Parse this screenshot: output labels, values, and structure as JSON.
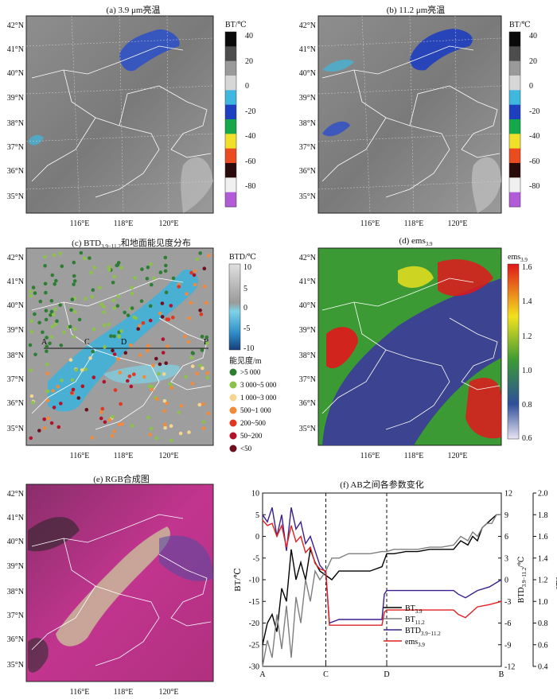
{
  "panels": {
    "a": {
      "title": "(a) 3.9 μm亮温",
      "colorbar_label": "BT/℃",
      "colorbar_ticks": [
        "40",
        "20",
        "0",
        "-20",
        "-40",
        "-60",
        "-80"
      ]
    },
    "b": {
      "title": "(b) 11.2 μm亮温",
      "colorbar_label": "BT/℃",
      "colorbar_ticks": [
        "40",
        "20",
        "0",
        "-20",
        "-40",
        "-60",
        "-80"
      ]
    },
    "c": {
      "title_prefix": "(c) BTD",
      "title_sub": "3.9−11.2",
      "title_suffix": "和地面能见度分布",
      "colorbar_label": "BTD/℃",
      "colorbar_ticks": [
        "10",
        "5",
        "0",
        "-5",
        "-10"
      ],
      "visibility_title": "能见度/m",
      "visibility_legend": [
        {
          "label": ">5 000",
          "color": "#2e7d32"
        },
        {
          "label": "3 000~5 000",
          "color": "#8bc34a"
        },
        {
          "label": "1 000~3 000",
          "color": "#f6d58f"
        },
        {
          "label": "500~1 000",
          "color": "#f28a3c"
        },
        {
          "label": "200~500",
          "color": "#e2361f"
        },
        {
          "label": "50~200",
          "color": "#b3122a"
        },
        {
          "label": "<50",
          "color": "#6d0f1f"
        }
      ],
      "points": {
        "A": "A",
        "C": "C",
        "D": "D",
        "B": "B"
      }
    },
    "d": {
      "title_prefix": "(d) ems",
      "title_sub": "3.9",
      "colorbar_label": "ems",
      "colorbar_label_sub": "3.9",
      "colorbar_ticks": [
        "1.6",
        "1.4",
        "1.2",
        "1.0",
        "0.8",
        "0.6"
      ]
    },
    "e": {
      "title": "(e) RGB合成图"
    },
    "f": {
      "title": "(f) AB之间各参数变化"
    }
  },
  "map_axes": {
    "lat_ticks": [
      "42°N",
      "41°N",
      "40°N",
      "39°N",
      "38°N",
      "37°N",
      "36°N",
      "35°N"
    ],
    "lon_ticks": [
      "116°E",
      "118°E",
      "120°E"
    ]
  },
  "chart_data": {
    "type": "line",
    "x_categories": [
      "A",
      "C",
      "D",
      "B"
    ],
    "x_positions": [
      0,
      0.265,
      0.52,
      1.0
    ],
    "dashed_verticals_at": [
      "C",
      "D"
    ],
    "left_axis": {
      "label": "BT/℃",
      "ylim": [
        -30,
        10
      ],
      "ticks": [
        "10",
        "5",
        "0",
        "-5",
        "-10",
        "-15",
        "-20",
        "-25",
        "-30"
      ]
    },
    "right_axis_1": {
      "label": "BTD",
      "label_sub": "3.9−11.2",
      "label_unit": "/℃",
      "ylim": [
        -12,
        12
      ],
      "ticks": [
        "12",
        "9",
        "6",
        "3",
        "0",
        "-3",
        "-6",
        "-9",
        "-12"
      ]
    },
    "right_axis_2": {
      "label": "ems",
      "label_sub": "3.9",
      "ylim": [
        0.4,
        2.0
      ],
      "ticks": [
        "2.0",
        "1.8",
        "1.6",
        "1.4",
        "1.2",
        "1.0",
        "0.8",
        "0.6",
        "0.4"
      ]
    },
    "series": [
      {
        "name": "BT",
        "sub": "3.9",
        "color": "#000000",
        "axis": "left",
        "x": [
          0,
          0.02,
          0.04,
          0.06,
          0.08,
          0.1,
          0.12,
          0.14,
          0.16,
          0.18,
          0.2,
          0.22,
          0.24,
          0.265,
          0.29,
          0.32,
          0.36,
          0.4,
          0.45,
          0.5,
          0.52,
          0.55,
          0.6,
          0.65,
          0.7,
          0.75,
          0.8,
          0.83,
          0.86,
          0.88,
          0.9,
          0.92,
          0.94,
          0.96,
          0.98,
          1.0
        ],
        "y": [
          -25,
          -20,
          -18,
          -22,
          -12,
          -15,
          -3,
          -10,
          -6,
          -10,
          -3,
          -6,
          -8,
          -9,
          -10,
          -8,
          -8,
          -8,
          -8,
          -7,
          -4,
          -4,
          -3.5,
          -3.5,
          -3,
          -3,
          -3,
          -1,
          -2,
          0,
          -1,
          2,
          3,
          4,
          5,
          5
        ]
      },
      {
        "name": "BT",
        "sub": "11.2",
        "color": "#7f7f7f",
        "axis": "left",
        "x": [
          0,
          0.02,
          0.04,
          0.06,
          0.08,
          0.1,
          0.12,
          0.14,
          0.16,
          0.18,
          0.2,
          0.22,
          0.24,
          0.265,
          0.29,
          0.32,
          0.36,
          0.4,
          0.45,
          0.5,
          0.52,
          0.55,
          0.6,
          0.65,
          0.7,
          0.75,
          0.8,
          0.83,
          0.86,
          0.88,
          0.9,
          0.92,
          0.94,
          0.96,
          0.98,
          1.0
        ],
        "y": [
          -30,
          -24,
          -28,
          -18,
          -26,
          -16,
          -28,
          -14,
          -20,
          -10,
          -15,
          -8,
          -10,
          -8,
          -5,
          -5,
          -4,
          -4,
          -4,
          -3.5,
          -3.5,
          -3,
          -3,
          -3,
          -2.5,
          -2.5,
          -2,
          0,
          -1,
          1,
          0,
          2,
          3,
          3,
          5,
          5
        ]
      },
      {
        "name": "BTD",
        "sub": "3.9−11.2",
        "color": "#3b1e8c",
        "axis": "right1",
        "x": [
          0,
          0.02,
          0.04,
          0.06,
          0.08,
          0.1,
          0.12,
          0.14,
          0.16,
          0.18,
          0.2,
          0.22,
          0.24,
          0.265,
          0.28,
          0.32,
          0.36,
          0.4,
          0.45,
          0.5,
          0.51,
          0.52,
          0.55,
          0.6,
          0.65,
          0.7,
          0.75,
          0.8,
          0.82,
          0.85,
          0.9,
          0.95,
          1.0
        ],
        "y": [
          9,
          8,
          10,
          6,
          9,
          4,
          10,
          7,
          8,
          5,
          6,
          4,
          2,
          1,
          -6,
          -5.5,
          -5.5,
          -5.5,
          -5.5,
          -5.5,
          -2,
          -1.5,
          -1.5,
          -1.5,
          -1.5,
          -1.5,
          -1.5,
          -1.5,
          -2,
          -2.5,
          -1.5,
          -1,
          0
        ]
      },
      {
        "name": "ems",
        "sub": "3.9",
        "color": "#e02020",
        "axis": "right2",
        "x": [
          0,
          0.02,
          0.04,
          0.06,
          0.08,
          0.1,
          0.12,
          0.14,
          0.16,
          0.18,
          0.2,
          0.22,
          0.24,
          0.265,
          0.28,
          0.32,
          0.36,
          0.4,
          0.45,
          0.5,
          0.51,
          0.52,
          0.55,
          0.6,
          0.65,
          0.7,
          0.75,
          0.8,
          0.82,
          0.85,
          0.9,
          0.95,
          1.0
        ],
        "y": [
          1.75,
          1.7,
          1.72,
          1.6,
          1.7,
          1.5,
          1.7,
          1.55,
          1.6,
          1.45,
          1.5,
          1.35,
          1.3,
          1.28,
          0.78,
          0.78,
          0.78,
          0.78,
          0.78,
          0.78,
          0.9,
          0.92,
          0.92,
          0.92,
          0.92,
          0.92,
          0.92,
          0.92,
          0.88,
          0.85,
          0.95,
          0.97,
          1.0
        ]
      }
    ]
  },
  "colors": {
    "map_line": "#ffffff",
    "grid": "#d9d9d9",
    "bt_colorbar": [
      "#0a0a0a",
      "#4d4d4d",
      "#9a9a9a",
      "#d7d7d7",
      "#3fb8e0",
      "#1e3fbf",
      "#15a84a",
      "#f0e02a",
      "#ea4b1f",
      "#2a0a0a",
      "#f0f0f0",
      "#b25bd8"
    ],
    "btd_colorbar": [
      "#d9d9d9",
      "#b0b0b0",
      "#7ed3e6",
      "#2f8fc9",
      "#173d7a"
    ],
    "ems_colorbar": [
      "#e0171b",
      "#f2e21e",
      "#3c9a35",
      "#2e4f9a",
      "#e9e4f2"
    ]
  }
}
